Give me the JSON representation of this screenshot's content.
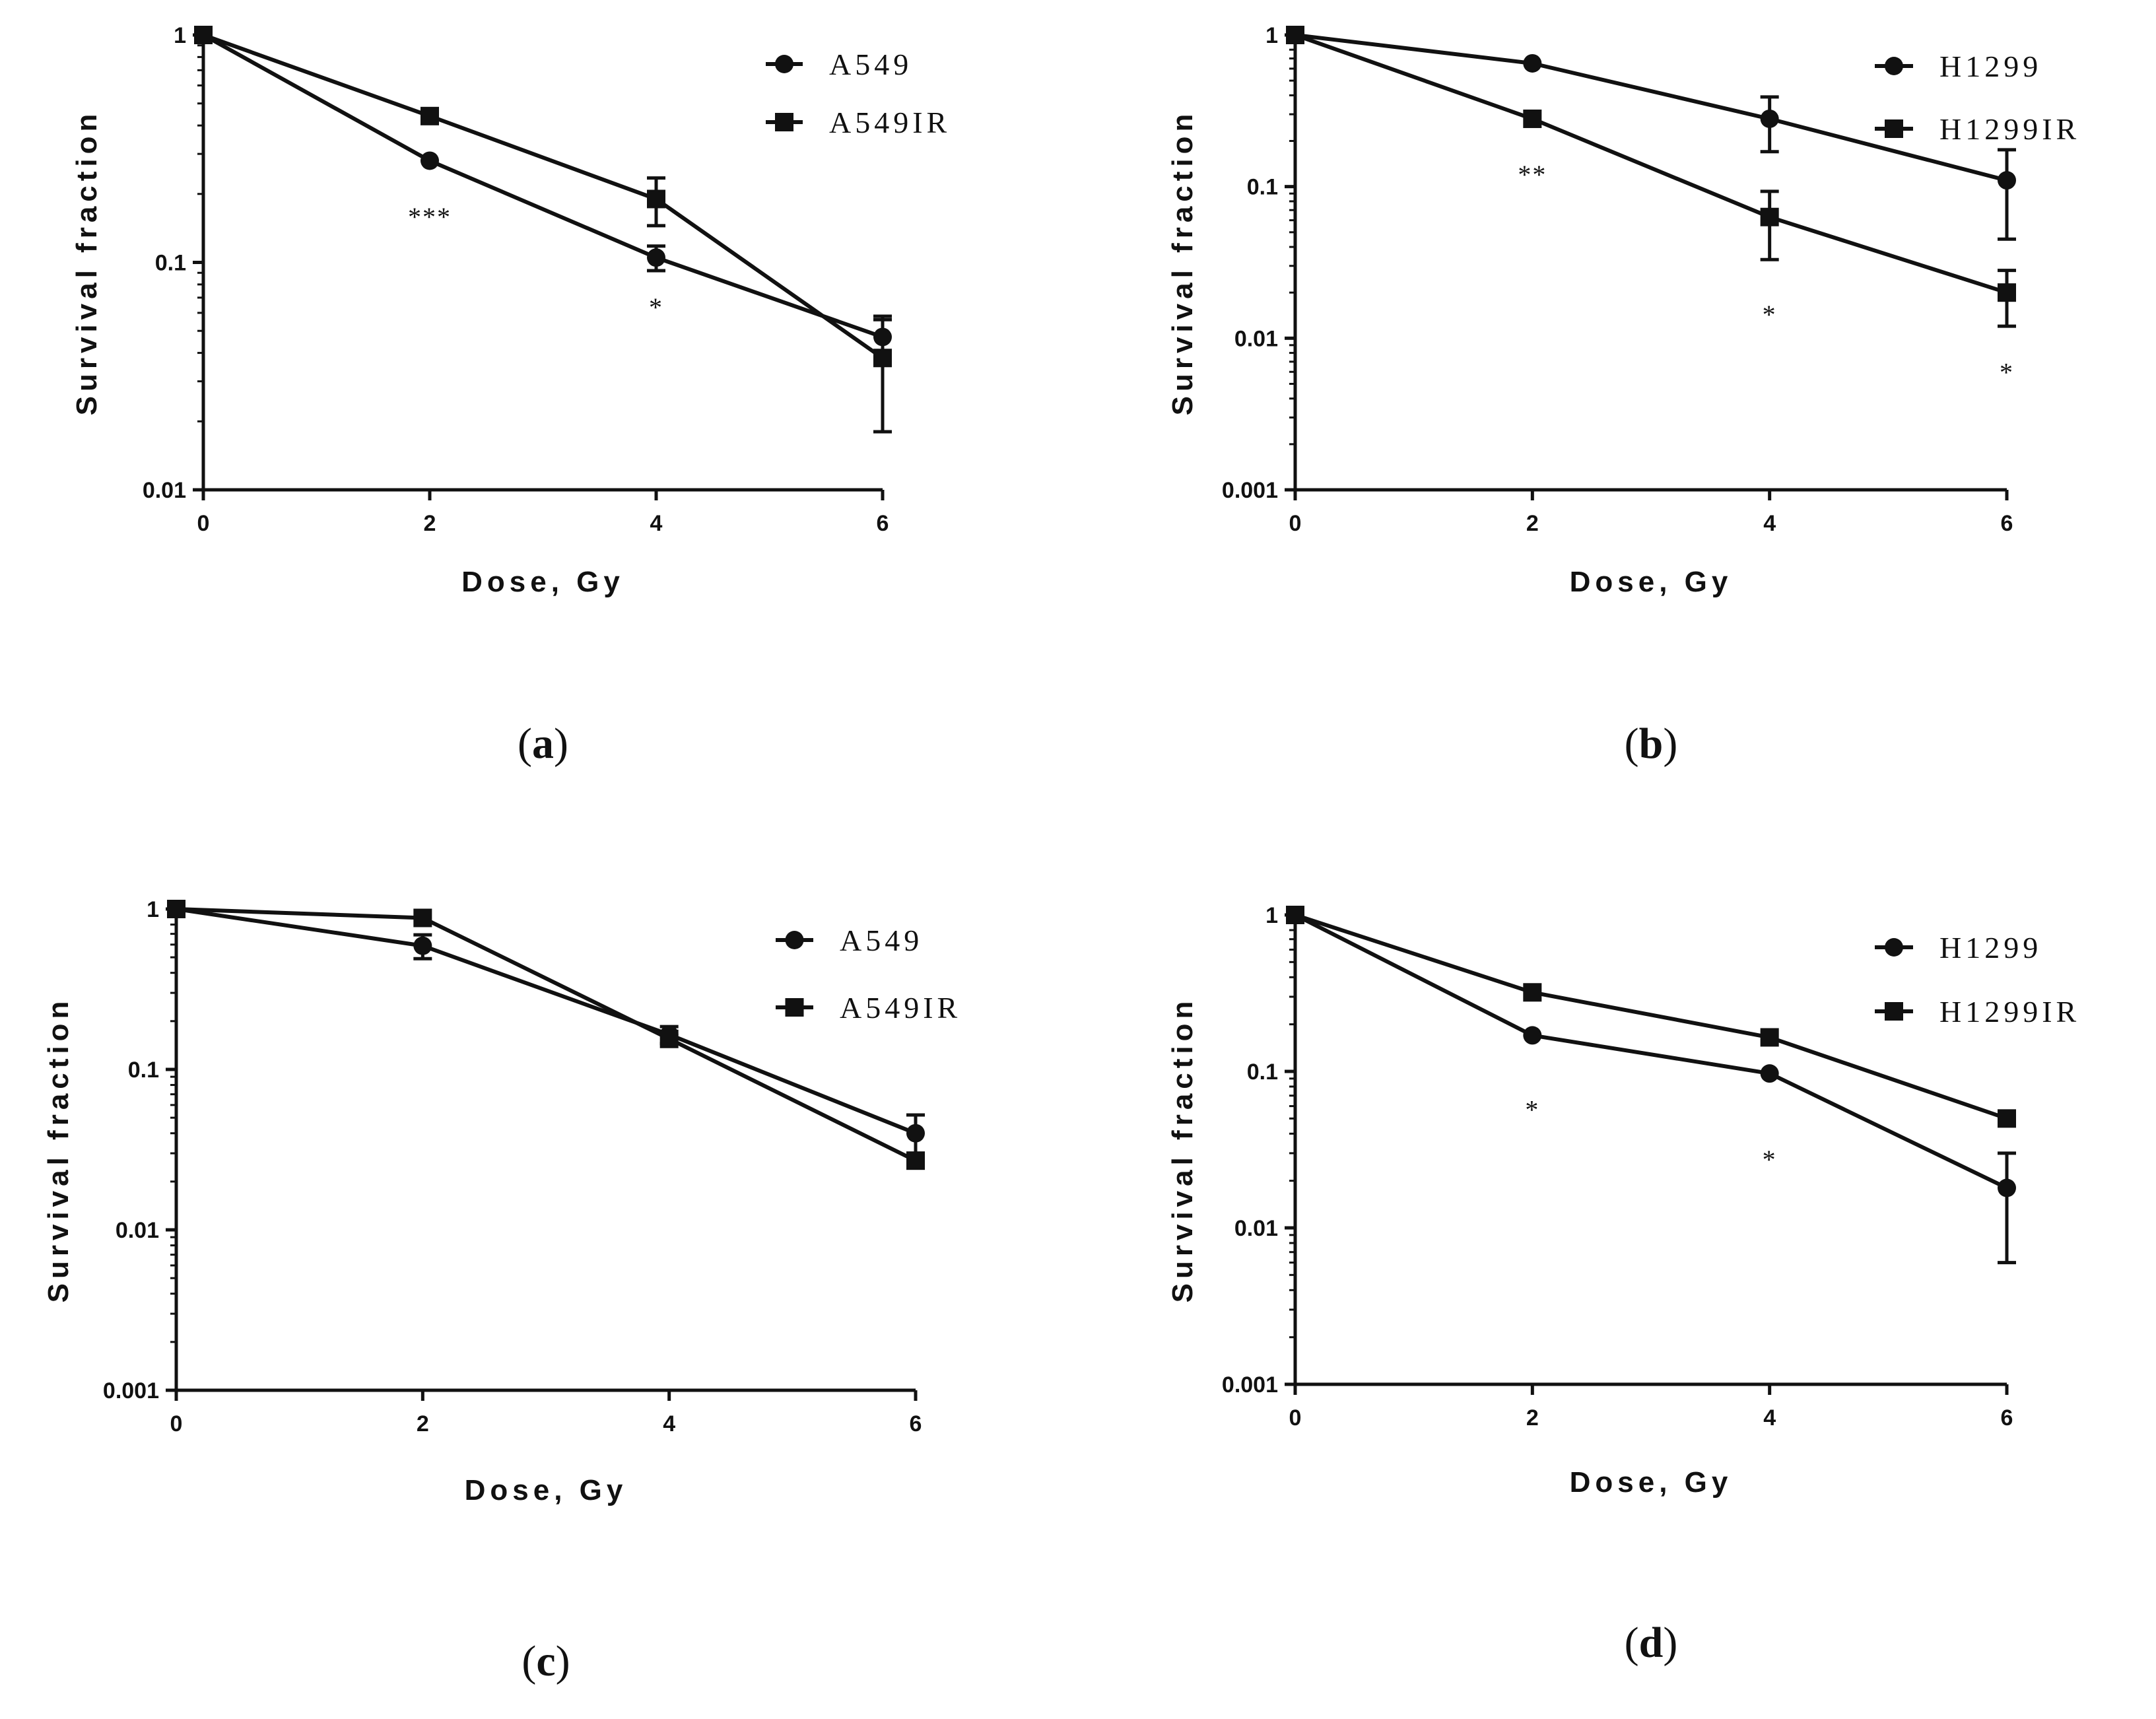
{
  "chart_data": [
    {
      "type": "line",
      "panel_label": "a",
      "xlabel": "Dose, Gy",
      "ylabel": "Survival fraction",
      "yscale": "log",
      "xlim": [
        0,
        6
      ],
      "ylim": [
        0.01,
        1
      ],
      "x_ticks": [
        0,
        2,
        4,
        6
      ],
      "x_tick_labels": [
        "0",
        "2",
        "4",
        "6"
      ],
      "y_ticks": [
        0.01,
        0.1,
        1
      ],
      "y_tick_labels": [
        "0.01",
        "0.1",
        "1"
      ],
      "x": [
        0,
        2,
        4,
        6
      ],
      "series": [
        {
          "name": "A549",
          "marker": "circle",
          "values": [
            1,
            0.28,
            0.105,
            0.047
          ],
          "errors": [
            0,
            0,
            0.013,
            0.009
          ]
        },
        {
          "name": "A549IR",
          "marker": "square",
          "values": [
            1,
            0.44,
            0.19,
            0.038
          ],
          "errors": [
            0,
            0,
            0.045,
            0.02
          ]
        }
      ],
      "annotations": [
        {
          "text": "***",
          "x": 2,
          "y": 0.145
        },
        {
          "text": "*",
          "x": 4,
          "y": 0.058
        }
      ]
    },
    {
      "type": "line",
      "panel_label": "b",
      "xlabel": "Dose, Gy",
      "ylabel": "Survival fraction",
      "yscale": "log",
      "xlim": [
        0,
        6
      ],
      "ylim": [
        0.001,
        1
      ],
      "x_ticks": [
        0,
        2,
        4,
        6
      ],
      "x_tick_labels": [
        "0",
        "2",
        "4",
        "6"
      ],
      "y_ticks": [
        0.001,
        0.01,
        0.1,
        1
      ],
      "y_tick_labels": [
        "0.001",
        "0.01",
        "0.1",
        "1"
      ],
      "x": [
        0,
        2,
        4,
        6
      ],
      "series": [
        {
          "name": "H1299",
          "marker": "circle",
          "values": [
            1,
            0.65,
            0.28,
            0.11
          ],
          "errors": [
            0,
            0,
            0.11,
            0.065
          ]
        },
        {
          "name": "H1299IR",
          "marker": "square",
          "values": [
            1,
            0.28,
            0.063,
            0.02
          ],
          "errors": [
            0,
            0,
            0.03,
            0.008
          ]
        }
      ],
      "annotations": [
        {
          "text": "**",
          "x": 2,
          "y": 0.105
        },
        {
          "text": "*",
          "x": 4,
          "y": 0.0125
        },
        {
          "text": "*",
          "x": 6,
          "y": 0.0052
        }
      ]
    },
    {
      "type": "line",
      "panel_label": "c",
      "xlabel": "Dose, Gy",
      "ylabel": "Survival fraction",
      "yscale": "log",
      "xlim": [
        0,
        6
      ],
      "ylim": [
        0.001,
        1
      ],
      "x_ticks": [
        0,
        2,
        4,
        6
      ],
      "x_tick_labels": [
        "0",
        "2",
        "4",
        "6"
      ],
      "y_ticks": [
        0.001,
        0.01,
        0.1,
        1
      ],
      "y_tick_labels": [
        "0.001",
        "0.01",
        "0.1",
        "1"
      ],
      "x": [
        0,
        2,
        4,
        6
      ],
      "series": [
        {
          "name": "A549",
          "marker": "circle",
          "values": [
            1,
            0.59,
            0.165,
            0.04
          ],
          "errors": [
            0,
            0.1,
            0.02,
            0.012
          ]
        },
        {
          "name": "A549IR",
          "marker": "square",
          "values": [
            1,
            0.88,
            0.155,
            0.027
          ],
          "errors": [
            0,
            0,
            0,
            0
          ]
        }
      ],
      "annotations": []
    },
    {
      "type": "line",
      "panel_label": "d",
      "xlabel": "Dose, Gy",
      "ylabel": "Survival fraction",
      "yscale": "log",
      "xlim": [
        0,
        6
      ],
      "ylim": [
        0.001,
        1
      ],
      "x_ticks": [
        0,
        2,
        4,
        6
      ],
      "x_tick_labels": [
        "0",
        "2",
        "4",
        "6"
      ],
      "y_ticks": [
        0.001,
        0.01,
        0.1,
        1
      ],
      "y_tick_labels": [
        "0.001",
        "0.01",
        "0.1",
        "1"
      ],
      "x": [
        0,
        2,
        4,
        6
      ],
      "series": [
        {
          "name": "H1299",
          "marker": "circle",
          "values": [
            1,
            0.17,
            0.097,
            0.018
          ],
          "errors": [
            0,
            0,
            0,
            0.012
          ]
        },
        {
          "name": "H1299IR",
          "marker": "square",
          "values": [
            1,
            0.32,
            0.165,
            0.05
          ],
          "errors": [
            0,
            0,
            0,
            0
          ]
        }
      ],
      "annotations": [
        {
          "text": "*",
          "x": 2,
          "y": 0.05
        },
        {
          "text": "*",
          "x": 4,
          "y": 0.024
        }
      ]
    }
  ]
}
